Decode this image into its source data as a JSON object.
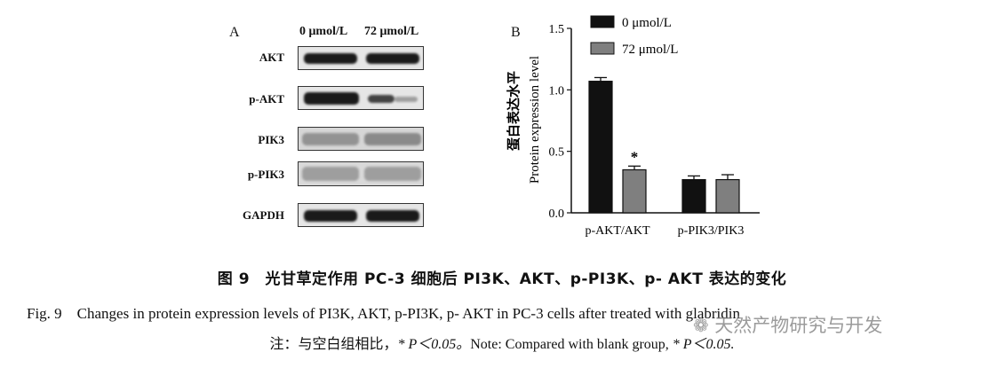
{
  "panel_a": {
    "letter": "A",
    "headers": [
      "0 μmol/L",
      "72 μmol/L"
    ],
    "rows": [
      "AKT",
      "p-AKT",
      "PIK3",
      "p-PIK3",
      "GAPDH"
    ]
  },
  "panel_b": {
    "letter": "B"
  },
  "chart_data": {
    "type": "bar",
    "categories": [
      "p-AKT/AKT",
      "p-PIK3/PIK3"
    ],
    "series": [
      {
        "name": "0 μmol/L",
        "values": [
          1.07,
          0.27
        ],
        "errors": [
          0.03,
          0.03
        ],
        "color": "#111111"
      },
      {
        "name": "72 μmol/L",
        "values": [
          0.35,
          0.27
        ],
        "errors": [
          0.03,
          0.04
        ],
        "color": "#7f7f7f"
      }
    ],
    "ylabel_cn": "蛋白表达水平",
    "ylabel": "Protein expression level",
    "ylim": [
      0,
      1.5
    ],
    "yticks": [
      "0.0",
      "0.5",
      "1.0",
      "1.5"
    ],
    "legend": "top-right",
    "significance": [
      {
        "category": "p-AKT/AKT",
        "series": "72 μmol/L",
        "mark": "*"
      }
    ]
  },
  "caption": {
    "cn": "图 9　光甘草定作用 PC-3 细胞后 PI3K、AKT、p-PI3K、p- AKT 表达的变化",
    "en": "Fig. 9　Changes in protein expression levels of PI3K, AKT, p-PI3K, p- AKT in PC-3 cells after treated with glabridin",
    "note_cn": "注：与空白组相比，",
    "note_p1": "* P＜0.05。",
    "note_en": "Note: Compared with blank group, ",
    "note_p2": "* P＜0.05."
  },
  "watermark": "天然产物研究与开发"
}
